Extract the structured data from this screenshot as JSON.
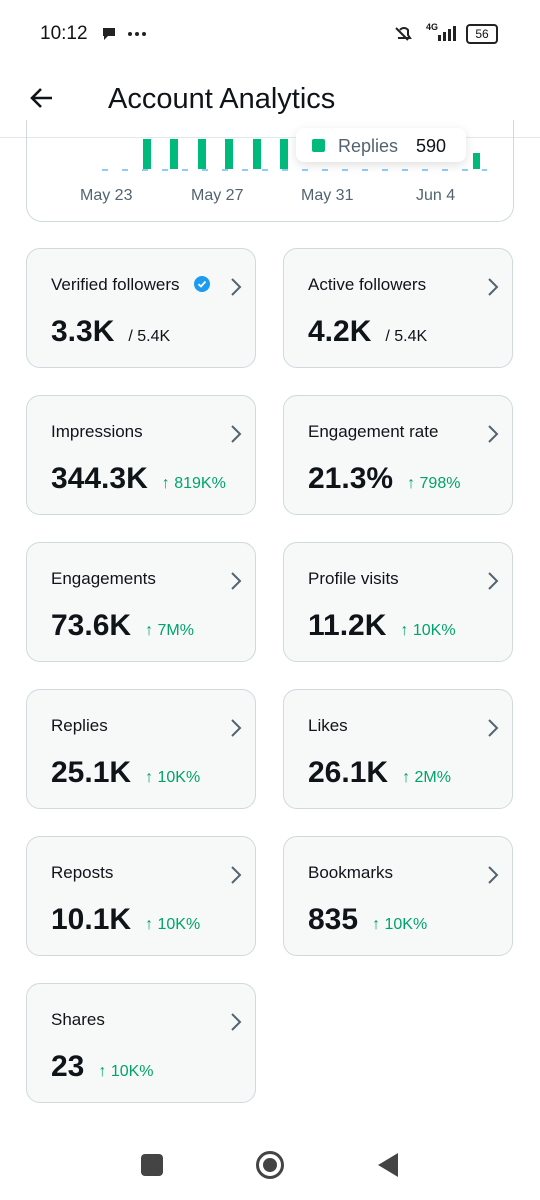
{
  "status_bar": {
    "time": "10:12",
    "network": "4G",
    "battery": "56"
  },
  "header": {
    "title": "Account Analytics"
  },
  "chart": {
    "tooltip": {
      "label": "Replies",
      "value": "590"
    },
    "x_labels": [
      "May 23",
      "May 27",
      "May 31",
      "Jun 4"
    ]
  },
  "metrics": [
    {
      "title": "Verified followers",
      "value": "3.3K",
      "total": "/ 5.4K"
    },
    {
      "title": "Active followers",
      "value": "4.2K",
      "total": "/ 5.4K"
    },
    {
      "title": "Impressions",
      "value": "344.3K",
      "change": "↑ 819K%"
    },
    {
      "title": "Engagement rate",
      "value": "21.3%",
      "change": "↑ 798%"
    },
    {
      "title": "Engagements",
      "value": "73.6K",
      "change": "↑ 7M%"
    },
    {
      "title": "Profile visits",
      "value": "11.2K",
      "change": "↑ 10K%"
    },
    {
      "title": "Replies",
      "value": "25.1K",
      "change": "↑ 10K%"
    },
    {
      "title": "Likes",
      "value": "26.1K",
      "change": "↑ 2M%"
    },
    {
      "title": "Reposts",
      "value": "10.1K",
      "change": "↑ 10K%"
    },
    {
      "title": "Bookmarks",
      "value": "835",
      "change": "↑ 10K%"
    },
    {
      "title": "Shares",
      "value": "23",
      "change": "↑ 10K%"
    }
  ]
}
